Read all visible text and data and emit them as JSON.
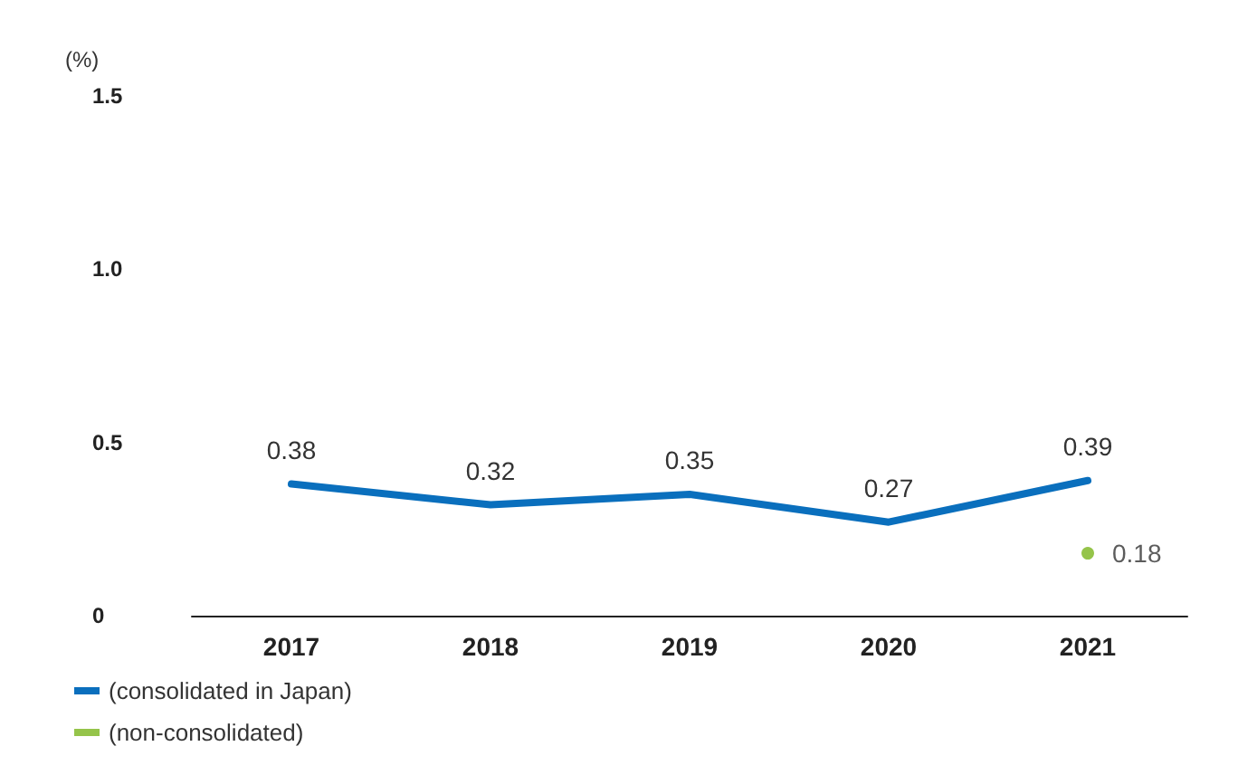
{
  "chart_data": {
    "type": "line",
    "ylabel": "(%)",
    "categories": [
      "2017",
      "2018",
      "2019",
      "2020",
      "2021"
    ],
    "series": [
      {
        "name": "(consolidated in Japan)",
        "color": "#0a6fbd",
        "values": [
          0.38,
          0.32,
          0.35,
          0.27,
          0.39
        ]
      },
      {
        "name": "(non-consolidated)",
        "color": "#7ab51d",
        "type": "scatter",
        "marker": "circle",
        "values": [
          null,
          null,
          null,
          null,
          0.18
        ]
      }
    ],
    "ylim": [
      0,
      1.5
    ],
    "yticks": [
      0,
      {
        "value": 0.5,
        "label": "0.5"
      },
      {
        "value": 1,
        "label": "1.0"
      },
      1.5
    ],
    "data_labels": true,
    "grid": false,
    "legend": "bottom left",
    "line_style": "solid"
  }
}
